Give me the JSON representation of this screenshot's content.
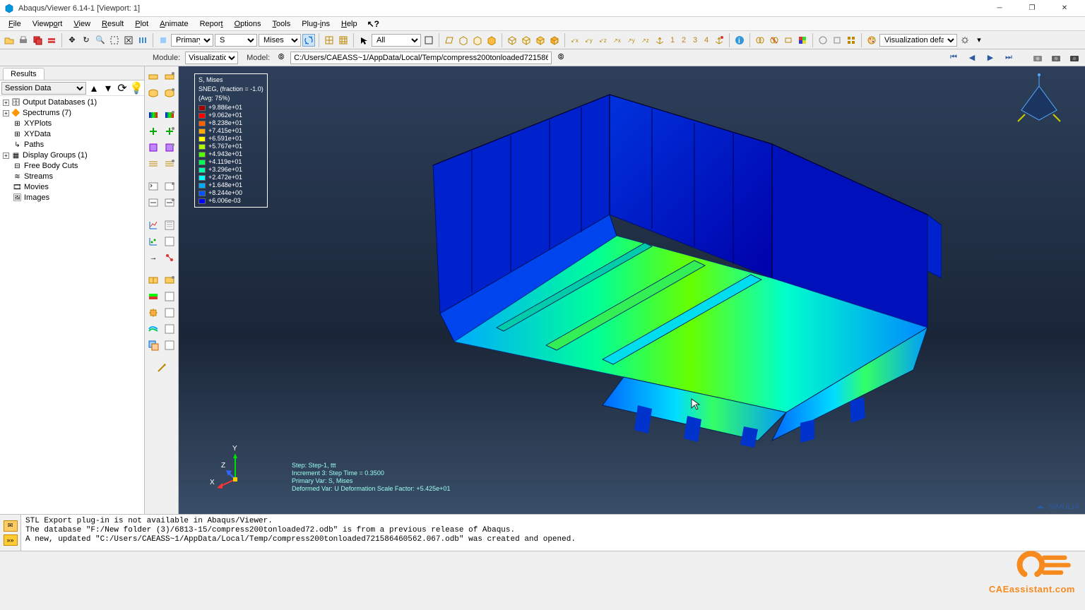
{
  "title": "Abaqus/Viewer 6.14-1 [Viewport: 1]",
  "menu": [
    "File",
    "Viewport",
    "View",
    "Result",
    "Plot",
    "Animate",
    "Report",
    "Options",
    "Tools",
    "Plug-ins",
    "Help"
  ],
  "toolbar1": {
    "primary_label": "Primary",
    "var1": "S",
    "var2": "Mises",
    "selectable": "All",
    "vis_defaults": "Visualization defaults"
  },
  "context": {
    "module_label": "Module:",
    "module": "Visualization",
    "model_label": "Model:",
    "model_path": "C:/Users/CAEASS~1/AppData/Local/Temp/compress200tonloaded721586460562.067.odb"
  },
  "results_tab": "Results",
  "session_data": "Session Data",
  "tree": [
    {
      "exp": "+",
      "icon": "db",
      "label": "Output Databases (1)"
    },
    {
      "exp": "+",
      "icon": "sp",
      "label": "Spectrums (7)"
    },
    {
      "exp": "",
      "icon": "xy",
      "label": "XYPlots"
    },
    {
      "exp": "",
      "icon": "xy",
      "label": "XYData"
    },
    {
      "exp": "",
      "icon": "pa",
      "label": "Paths"
    },
    {
      "exp": "+",
      "icon": "dg",
      "label": "Display Groups (1)"
    },
    {
      "exp": "",
      "icon": "fb",
      "label": "Free Body Cuts"
    },
    {
      "exp": "",
      "icon": "st",
      "label": "Streams"
    },
    {
      "exp": "",
      "icon": "mv",
      "label": "Movies"
    },
    {
      "exp": "",
      "icon": "im",
      "label": "Images"
    }
  ],
  "legend": {
    "title1": "S, Mises",
    "title2": "SNEG, (fraction = -1.0)",
    "title3": "(Avg: 75%)",
    "colors": [
      "#a00000",
      "#ff0000",
      "#ff6000",
      "#ffaa00",
      "#ffff00",
      "#aaff00",
      "#55ff00",
      "#00ff55",
      "#00ffaa",
      "#00ffff",
      "#00aaff",
      "#0055ff",
      "#0000ff"
    ],
    "values": [
      "+9.886e+01",
      "+9.062e+01",
      "+8.238e+01",
      "+7.415e+01",
      "+6.591e+01",
      "+5.767e+01",
      "+4.943e+01",
      "+4.119e+01",
      "+3.296e+01",
      "+2.472e+01",
      "+1.648e+01",
      "+8.244e+00",
      "+6.006e-03"
    ]
  },
  "footer": {
    "l1": "Step: Step-1, ttt",
    "l2": "Increment      3: Step Time =    0.3500",
    "l3": "Primary Var: S, Mises",
    "l4": "Deformed Var: U   Deformation Scale Factor: +5.425e+01"
  },
  "brand_text": "SIMULIA",
  "messages": "STL Export plug-in is not available in Abaqus/Viewer.\nThe database \"F:/New folder (3)/6813-15/compress200tonloaded72.odb\" is from a previous release of Abaqus.\nA new, updated \"C:/Users/CAEASS~1/AppData/Local/Temp/compress200tonloaded721586460562.067.odb\" was created and opened.",
  "watermark": "CAEassistant.com",
  "triad": {
    "x": "X",
    "y": "Y",
    "z": "Z"
  },
  "nums": [
    "1",
    "2",
    "3",
    "4"
  ]
}
